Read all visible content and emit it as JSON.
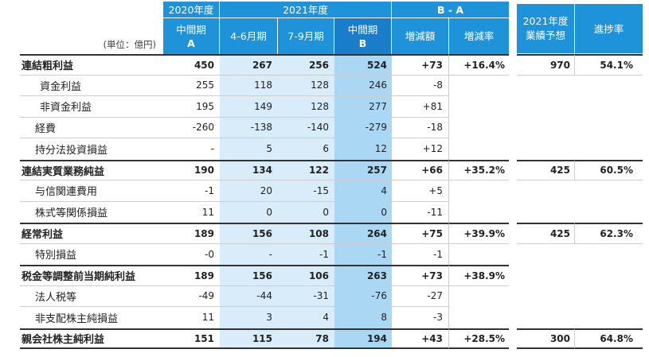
{
  "unit_label": "(単位：億円)",
  "header": {
    "fy2020": "2020年度",
    "fy2021": "2021年度",
    "b_minus_a": "B - A",
    "col_a_line1": "中間期",
    "col_a_line2": "A",
    "col_q1": "4-6月期",
    "col_q2": "7-9月期",
    "col_b_line1": "中間期",
    "col_b_line2": "B",
    "col_diff": "増減額",
    "col_rate": "増減率",
    "forecast_line1": "2021年度",
    "forecast_line2": "業績予想",
    "progress": "進捗率"
  },
  "colors": {
    "header_blue": "#1f93da",
    "header_interim_b": "#1a7dcb",
    "quarter_fill": "#d8ecfa",
    "interim_b_fill": "#a9d7f4"
  },
  "rows": [
    {
      "label": "連結粗利益",
      "a": "450",
      "q1": "267",
      "q2": "256",
      "b": "524",
      "diff": "+73",
      "rate": "+16.4%",
      "forecast": "970",
      "progress": "54.1%"
    },
    {
      "label": "資金利益",
      "a": "255",
      "q1": "118",
      "q2": "128",
      "b": "246",
      "diff": "-8"
    },
    {
      "label": "非資金利益",
      "a": "195",
      "q1": "149",
      "q2": "128",
      "b": "277",
      "diff": "+81"
    },
    {
      "label": "経費",
      "a": "-260",
      "q1": "-138",
      "q2": "-140",
      "b": "-279",
      "diff": "-18"
    },
    {
      "label": "持分法投資損益",
      "a": "-",
      "q1": "5",
      "q2": "6",
      "b": "12",
      "diff": "+12"
    },
    {
      "label": "連結実質業務純益",
      "a": "190",
      "q1": "134",
      "q2": "122",
      "b": "257",
      "diff": "+66",
      "rate": "+35.2%",
      "forecast": "425",
      "progress": "60.5%"
    },
    {
      "label": "与信関連費用",
      "a": "-1",
      "q1": "20",
      "q2": "-15",
      "b": "4",
      "diff": "+5"
    },
    {
      "label": "株式等関係損益",
      "a": "11",
      "q1": "0",
      "q2": "0",
      "b": "0",
      "diff": "-11"
    },
    {
      "label": "経常利益",
      "a": "189",
      "q1": "156",
      "q2": "108",
      "b": "264",
      "diff": "+75",
      "rate": "+39.9%",
      "forecast": "425",
      "progress": "62.3%"
    },
    {
      "label": "特別損益",
      "a": "-0",
      "q1": "-",
      "q2": "-1",
      "b": "-1",
      "diff": "-1"
    },
    {
      "label": "税金等調整前当期純利益",
      "a": "189",
      "q1": "156",
      "q2": "106",
      "b": "263",
      "diff": "+73",
      "rate": "+38.9%"
    },
    {
      "label": "法人税等",
      "a": "-49",
      "q1": "-44",
      "q2": "-31",
      "b": "-76",
      "diff": "-27"
    },
    {
      "label": "非支配株主純損益",
      "a": "11",
      "q1": "3",
      "q2": "4",
      "b": "8",
      "diff": "-3"
    },
    {
      "label": "親会社株主純利益",
      "a": "151",
      "q1": "115",
      "q2": "78",
      "b": "194",
      "diff": "+43",
      "rate": "+28.5%",
      "forecast": "300",
      "progress": "64.8%"
    }
  ]
}
